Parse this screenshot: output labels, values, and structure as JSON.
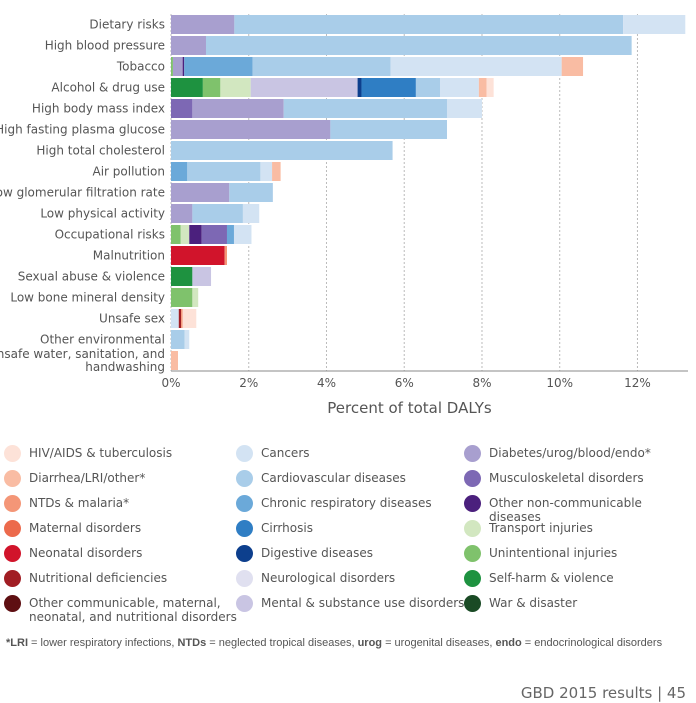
{
  "chart_data": {
    "type": "bar",
    "orientation": "horizontal",
    "stacked": true,
    "xlabel": "Percent of total DALYs",
    "xlim": [
      0,
      13.3
    ],
    "xticks": [
      "0%",
      "2%",
      "4%",
      "6%",
      "8%",
      "10%",
      "12%"
    ],
    "xtick_values": [
      0,
      2,
      4,
      6,
      8,
      10,
      12
    ],
    "grid": "vertical dashed",
    "categories": [
      "Dietary risks",
      "High blood pressure",
      "Tobacco",
      "Alcohol & drug use",
      "High body mass index",
      "High fasting plasma glucose",
      "High total cholesterol",
      "Air pollution",
      "Low glomerular filtration rate",
      "Low physical activity",
      "Occupational risks",
      "Malnutrition",
      "Sexual abuse & violence",
      "Low bone mineral density",
      "Unsafe sex",
      "Other environmental",
      [
        "Unsafe water, sanitation, and",
        "handwashing"
      ]
    ],
    "bars": [
      [
        [
          "Diabetes/urog/blood/endo*",
          1.63
        ],
        [
          "Cardiovascular diseases",
          10.0
        ],
        [
          "Cancers",
          1.6
        ]
      ],
      [
        [
          "Diabetes/urog/blood/endo*",
          0.9
        ],
        [
          "Cardiovascular diseases",
          10.95
        ]
      ],
      [
        [
          "Unintentional injuries",
          0.05
        ],
        [
          "Diabetes/urog/blood/endo*",
          0.25
        ],
        [
          "Other non-communicable diseases",
          0.04
        ],
        [
          "Chronic respiratory diseases",
          1.76
        ],
        [
          "Cardiovascular diseases",
          3.55
        ],
        [
          "Cancers",
          4.4
        ],
        [
          "Diarrhea/LRI/other*",
          0.55
        ]
      ],
      [
        [
          "Self-harm & violence",
          0.82
        ],
        [
          "Unintentional injuries",
          0.45
        ],
        [
          "Transport injuries",
          0.78
        ],
        [
          "Mental & substance use disorders",
          2.75
        ],
        [
          "Digestive diseases",
          0.1
        ],
        [
          "Cirrhosis",
          1.4
        ],
        [
          "Cardiovascular diseases",
          0.62
        ],
        [
          "Cancers",
          1.0
        ],
        [
          "Diarrhea/LRI/other*",
          0.2
        ],
        [
          "HIV/AIDS & tuberculosis",
          0.18
        ]
      ],
      [
        [
          "Musculoskeletal disorders",
          0.55
        ],
        [
          "Diabetes/urog/blood/endo*",
          2.35
        ],
        [
          "Cardiovascular diseases",
          4.2
        ],
        [
          "Cancers",
          0.9
        ]
      ],
      [
        [
          "Diabetes/urog/blood/endo*",
          4.1
        ],
        [
          "Cardiovascular diseases",
          3.0
        ]
      ],
      [
        [
          "Cardiovascular diseases",
          5.7
        ]
      ],
      [
        [
          "Chronic respiratory diseases",
          0.42
        ],
        [
          "Cardiovascular diseases",
          1.88
        ],
        [
          "Cancers",
          0.3
        ],
        [
          "Diarrhea/LRI/other*",
          0.22
        ]
      ],
      [
        [
          "Diabetes/urog/blood/endo*",
          1.5
        ],
        [
          "Cardiovascular diseases",
          1.12
        ]
      ],
      [
        [
          "Diabetes/urog/blood/endo*",
          0.55
        ],
        [
          "Cardiovascular diseases",
          1.3
        ],
        [
          "Cancers",
          0.42
        ]
      ],
      [
        [
          "Unintentional injuries",
          0.25
        ],
        [
          "Transport injuries",
          0.22
        ],
        [
          "Other non-communicable diseases",
          0.32
        ],
        [
          "Musculoskeletal disorders",
          0.65
        ],
        [
          "Chronic respiratory diseases",
          0.18
        ],
        [
          "Cancers",
          0.45
        ]
      ],
      [
        [
          "Neonatal disorders",
          1.38
        ],
        [
          "NTDs & malaria*",
          0.06
        ]
      ],
      [
        [
          "Self-harm & violence",
          0.55
        ],
        [
          "Mental & substance use disorders",
          0.48
        ]
      ],
      [
        [
          "Unintentional injuries",
          0.55
        ],
        [
          "Transport injuries",
          0.15
        ]
      ],
      [
        [
          "Cancers",
          0.2
        ],
        [
          "Nutritional deficiencies",
          0.06
        ],
        [
          "NTDs & malaria*",
          0.04
        ],
        [
          "HIV/AIDS & tuberculosis",
          0.35
        ]
      ],
      [
        [
          "Cardiovascular diseases",
          0.35
        ],
        [
          "Cancers",
          0.12
        ]
      ],
      [
        [
          "Diarrhea/LRI/other*",
          0.18
        ]
      ]
    ],
    "colors": {
      "HIV/AIDS & tuberculosis": "#fde2d8",
      "Diarrhea/LRI/other*": "#f9bca3",
      "NTDs & malaria*": "#f49677",
      "Maternal disorders": "#ec6a4c",
      "Neonatal disorders": "#d1142b",
      "Nutritional deficiencies": "#a11d23",
      "Other communicable, maternal, neonatal, and nutritional disorders": "#5e0f12",
      "Cancers": "#d3e3f3",
      "Cardiovascular diseases": "#a9cde9",
      "Chronic respiratory diseases": "#6ba9d9",
      "Cirrhosis": "#2f7ec4",
      "Digestive diseases": "#0d3f8d",
      "Neurological disorders": "#e0e0f0",
      "Mental & substance use disorders": "#c9c5e3",
      "Diabetes/urog/blood/endo*": "#a89fcf",
      "Musculoskeletal disorders": "#7d68b4",
      "Other non-communicable diseases": "#4b207d",
      "Transport injuries": "#d2e7c0",
      "Unintentional injuries": "#7fc26c",
      "Self-harm & violence": "#1e9240",
      "War & disaster": "#1a4a25"
    },
    "legend_position": "bottom",
    "legend": [
      [
        "HIV/AIDS & tuberculosis",
        "Cancers",
        "Diabetes/urog/blood/endo*"
      ],
      [
        "Diarrhea/LRI/other*",
        "Cardiovascular diseases",
        "Musculoskeletal disorders"
      ],
      [
        "NTDs & malaria*",
        "Chronic respiratory diseases",
        "Other non-communicable diseases"
      ],
      [
        "Maternal disorders",
        "Cirrhosis",
        "Transport injuries"
      ],
      [
        "Neonatal disorders",
        "Digestive diseases",
        "Unintentional injuries"
      ],
      [
        "Nutritional deficiencies",
        "Neurological disorders",
        "Self-harm & violence"
      ],
      [
        "Other communicable, maternal, neonatal, and nutritional disorders",
        "Mental & substance use disorders",
        "War & disaster"
      ]
    ],
    "legend_label_lines": {
      "Other communicable, maternal, neonatal, and nutritional disorders": [
        "Other communicable, maternal,",
        "neonatal, and nutritional disorders"
      ]
    }
  },
  "footnote": {
    "parts": [
      [
        "*LRI",
        true
      ],
      [
        " = lower respiratory infections, ",
        false
      ],
      [
        "NTDs",
        true
      ],
      [
        " = neglected tropical diseases, ",
        false
      ],
      [
        "urog",
        true
      ],
      [
        " = urogenital diseases, ",
        false
      ],
      [
        "endo",
        true
      ],
      [
        " = endocrinological disorders",
        false
      ]
    ]
  },
  "page_footer": "GBD 2015 results  |  45"
}
